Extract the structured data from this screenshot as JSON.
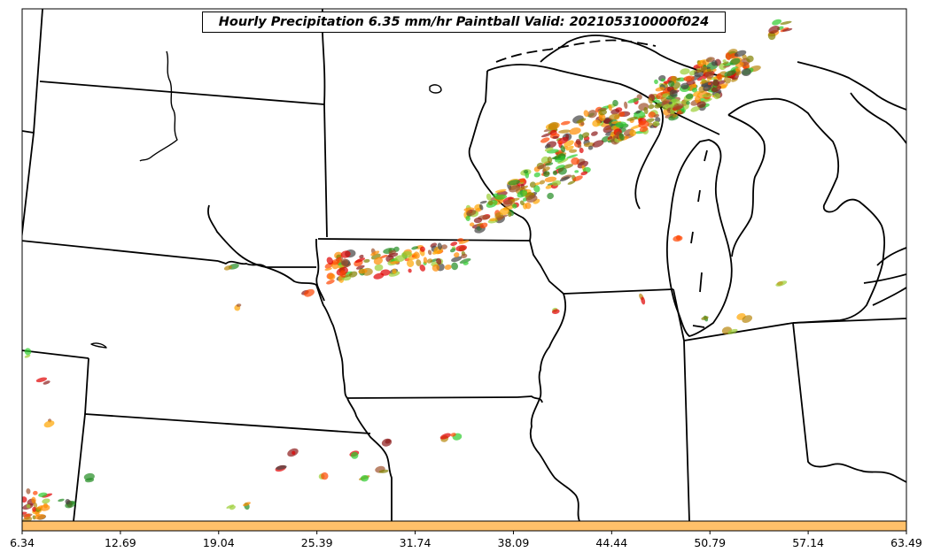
{
  "title": "Hourly Precipitation 6.35 mm/hr Paintball Valid: 202105310000f024",
  "colorbar": {
    "fill_color": "#ffc06a",
    "tick_labels": [
      "6.34",
      "12.69",
      "19.04",
      "25.39",
      "31.74",
      "38.09",
      "44.44",
      "50.79",
      "57.14",
      "63.49"
    ]
  },
  "map": {
    "background": "#ffffff",
    "boundary_color": "#000000",
    "member_colors": [
      "#e00000",
      "#ff8c00",
      "#ffa500",
      "#2ecc2e",
      "#228b22",
      "#8b1a1a",
      "#a0522d",
      "#808000",
      "#9acd32",
      "#444444",
      "#b8860b",
      "#ff4500"
    ]
  }
}
